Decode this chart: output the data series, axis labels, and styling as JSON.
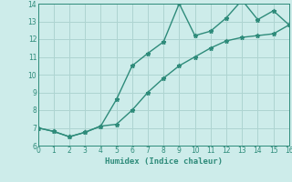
{
  "x": [
    0,
    1,
    2,
    3,
    4,
    5,
    6,
    7,
    8,
    9,
    10,
    11,
    12,
    13,
    14,
    15,
    16
  ],
  "line1_y": [
    7.0,
    6.8,
    6.5,
    6.75,
    7.1,
    8.6,
    10.5,
    11.2,
    11.85,
    14.0,
    12.2,
    12.45,
    13.2,
    14.2,
    13.1,
    13.6,
    12.8
  ],
  "line2_y": [
    7.0,
    6.8,
    6.5,
    6.75,
    7.1,
    7.2,
    8.0,
    9.0,
    9.8,
    10.5,
    11.0,
    11.5,
    11.9,
    12.1,
    12.2,
    12.3,
    12.8
  ],
  "line_color": "#2e8b7a",
  "bg_color": "#cdecea",
  "grid_color": "#aed4d1",
  "xlabel": "Humidex (Indice chaleur)",
  "xlim": [
    0,
    16
  ],
  "ylim": [
    6,
    14
  ],
  "xticks": [
    0,
    1,
    2,
    3,
    4,
    5,
    6,
    7,
    8,
    9,
    10,
    11,
    12,
    13,
    14,
    15,
    16
  ],
  "yticks": [
    6,
    7,
    8,
    9,
    10,
    11,
    12,
    13,
    14
  ],
  "marker": "*",
  "markersize": 3.5,
  "linewidth": 1.0
}
